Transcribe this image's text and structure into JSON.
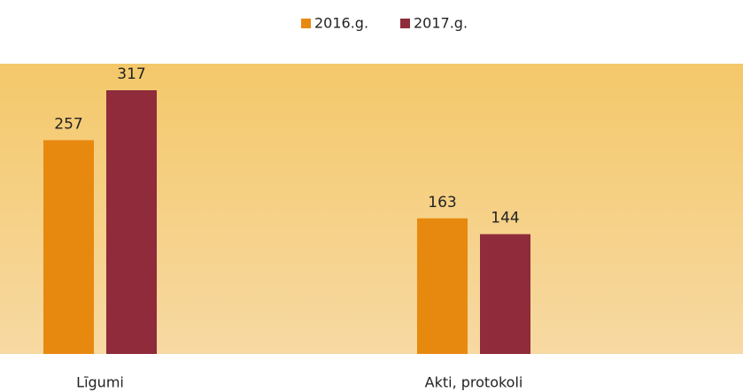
{
  "chart_data": {
    "type": "bar",
    "categories": [
      "Līgumi",
      "Akti, protokoli"
    ],
    "series": [
      {
        "name": "2016.g.",
        "color": "#e8890f",
        "values": [
          257,
          163
        ]
      },
      {
        "name": "2017.g.",
        "color": "#8f2b3a",
        "values": [
          317,
          144
        ]
      }
    ],
    "legend": "top"
  }
}
